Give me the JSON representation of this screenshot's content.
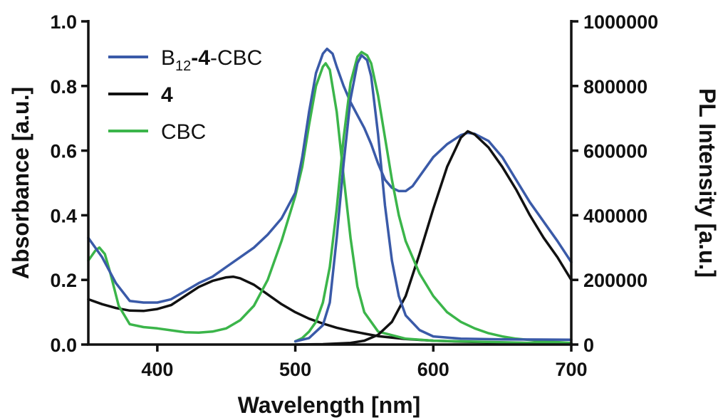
{
  "chart_data": {
    "type": "line",
    "xlabel": "Wavelength [nm]",
    "ylabel_left": "Absorbance [a.u.]",
    "ylabel_right": "PL Intensity [a.u.]",
    "xlim": [
      350,
      700
    ],
    "ylim_left": [
      0,
      1.0
    ],
    "ylim_right": [
      0,
      1000000
    ],
    "x_ticks": [
      400,
      500,
      600,
      700
    ],
    "y_left_ticks": [
      "0.0",
      "0.2",
      "0.4",
      "0.6",
      "0.8",
      "1.0"
    ],
    "y_right_ticks": [
      "0",
      "200000",
      "400000",
      "600000",
      "800000",
      "1000000"
    ],
    "grid": false,
    "legend_position": "top-left",
    "legend": [
      {
        "base": "B",
        "sub": "12",
        "bold": "-4",
        "tail": "-CBC",
        "color": "#3a5aa8"
      },
      {
        "base": "",
        "sub": "",
        "bold": "4",
        "tail": "",
        "color": "#111111"
      },
      {
        "base": "CBC",
        "sub": "",
        "bold": "",
        "tail": "",
        "color": "#3bb54a"
      }
    ],
    "series": [
      {
        "legend_index": 1,
        "axis": "left",
        "kind": "absorbance",
        "color": "#111111",
        "x": [
          350,
          360,
          370,
          380,
          390,
          400,
          410,
          420,
          430,
          440,
          450,
          455,
          460,
          470,
          480,
          490,
          500,
          510,
          520,
          530,
          540,
          550,
          560,
          580,
          600,
          620,
          650,
          700
        ],
        "y": [
          0.14,
          0.125,
          0.113,
          0.105,
          0.104,
          0.11,
          0.122,
          0.15,
          0.178,
          0.197,
          0.208,
          0.21,
          0.205,
          0.185,
          0.155,
          0.125,
          0.1,
          0.08,
          0.065,
          0.052,
          0.042,
          0.034,
          0.026,
          0.017,
          0.012,
          0.009,
          0.006,
          0.003
        ]
      },
      {
        "legend_index": 2,
        "axis": "left",
        "kind": "absorbance",
        "color": "#3bb54a",
        "x": [
          350,
          355,
          358,
          362,
          366,
          372,
          380,
          390,
          400,
          420,
          430,
          440,
          450,
          460,
          470,
          480,
          490,
          500,
          505,
          510,
          515,
          520,
          522,
          525,
          530,
          535,
          540,
          545,
          550,
          560,
          580,
          600,
          620,
          640,
          660,
          680,
          700
        ],
        "y": [
          0.26,
          0.29,
          0.3,
          0.28,
          0.22,
          0.12,
          0.063,
          0.054,
          0.05,
          0.038,
          0.037,
          0.04,
          0.05,
          0.075,
          0.12,
          0.2,
          0.32,
          0.46,
          0.55,
          0.68,
          0.8,
          0.86,
          0.87,
          0.85,
          0.72,
          0.52,
          0.33,
          0.18,
          0.1,
          0.04,
          0.018,
          0.012,
          0.01,
          0.008,
          0.006,
          0.004,
          0.003
        ]
      },
      {
        "legend_index": 0,
        "axis": "left",
        "kind": "absorbance",
        "color": "#3a5aa8",
        "x": [
          350,
          360,
          370,
          380,
          390,
          400,
          410,
          420,
          430,
          440,
          450,
          460,
          470,
          480,
          490,
          500,
          505,
          510,
          515,
          520,
          523,
          527,
          530,
          535,
          540,
          545,
          550,
          555,
          560,
          565,
          570,
          575,
          580,
          585,
          590,
          600,
          610,
          620,
          625,
          630,
          640,
          650,
          660,
          670,
          680,
          690,
          700
        ],
        "y": [
          0.33,
          0.27,
          0.19,
          0.135,
          0.13,
          0.13,
          0.14,
          0.165,
          0.19,
          0.21,
          0.24,
          0.27,
          0.3,
          0.34,
          0.39,
          0.47,
          0.58,
          0.72,
          0.84,
          0.9,
          0.915,
          0.9,
          0.86,
          0.8,
          0.75,
          0.71,
          0.67,
          0.62,
          0.56,
          0.51,
          0.485,
          0.475,
          0.475,
          0.49,
          0.52,
          0.58,
          0.62,
          0.648,
          0.655,
          0.652,
          0.63,
          0.58,
          0.51,
          0.44,
          0.38,
          0.32,
          0.255
        ]
      },
      {
        "legend_index": 1,
        "axis": "right",
        "kind": "PL",
        "color": "#111111",
        "x": [
          500,
          520,
          540,
          550,
          560,
          570,
          580,
          590,
          600,
          610,
          620,
          625,
          630,
          640,
          650,
          660,
          670,
          680,
          690,
          700
        ],
        "y": [
          0,
          1000,
          5000,
          12000,
          30000,
          70000,
          150000,
          280000,
          420000,
          550000,
          640000,
          660000,
          650000,
          610000,
          550000,
          480000,
          400000,
          330000,
          270000,
          200000
        ]
      },
      {
        "legend_index": 2,
        "axis": "right",
        "kind": "PL",
        "color": "#3bb54a",
        "x": [
          500,
          505,
          510,
          515,
          520,
          525,
          530,
          535,
          540,
          545,
          548,
          552,
          555,
          560,
          565,
          570,
          575,
          580,
          590,
          600,
          610,
          620,
          630,
          640,
          650,
          660,
          680,
          700
        ],
        "y": [
          10000,
          20000,
          40000,
          70000,
          130000,
          240000,
          420000,
          640000,
          810000,
          890000,
          905000,
          895000,
          870000,
          770000,
          640000,
          510000,
          400000,
          320000,
          220000,
          150000,
          100000,
          70000,
          50000,
          35000,
          25000,
          18000,
          10000,
          5000
        ]
      },
      {
        "legend_index": 0,
        "axis": "right",
        "kind": "PL",
        "color": "#3a5aa8",
        "x": [
          500,
          510,
          520,
          525,
          530,
          535,
          540,
          545,
          548,
          552,
          555,
          560,
          565,
          570,
          575,
          580,
          590,
          600,
          620,
          650,
          700
        ],
        "y": [
          10000,
          20000,
          60000,
          130000,
          330000,
          560000,
          760000,
          870000,
          895000,
          880000,
          830000,
          650000,
          430000,
          260000,
          150000,
          90000,
          45000,
          25000,
          18000,
          16000,
          15000
        ]
      }
    ]
  }
}
